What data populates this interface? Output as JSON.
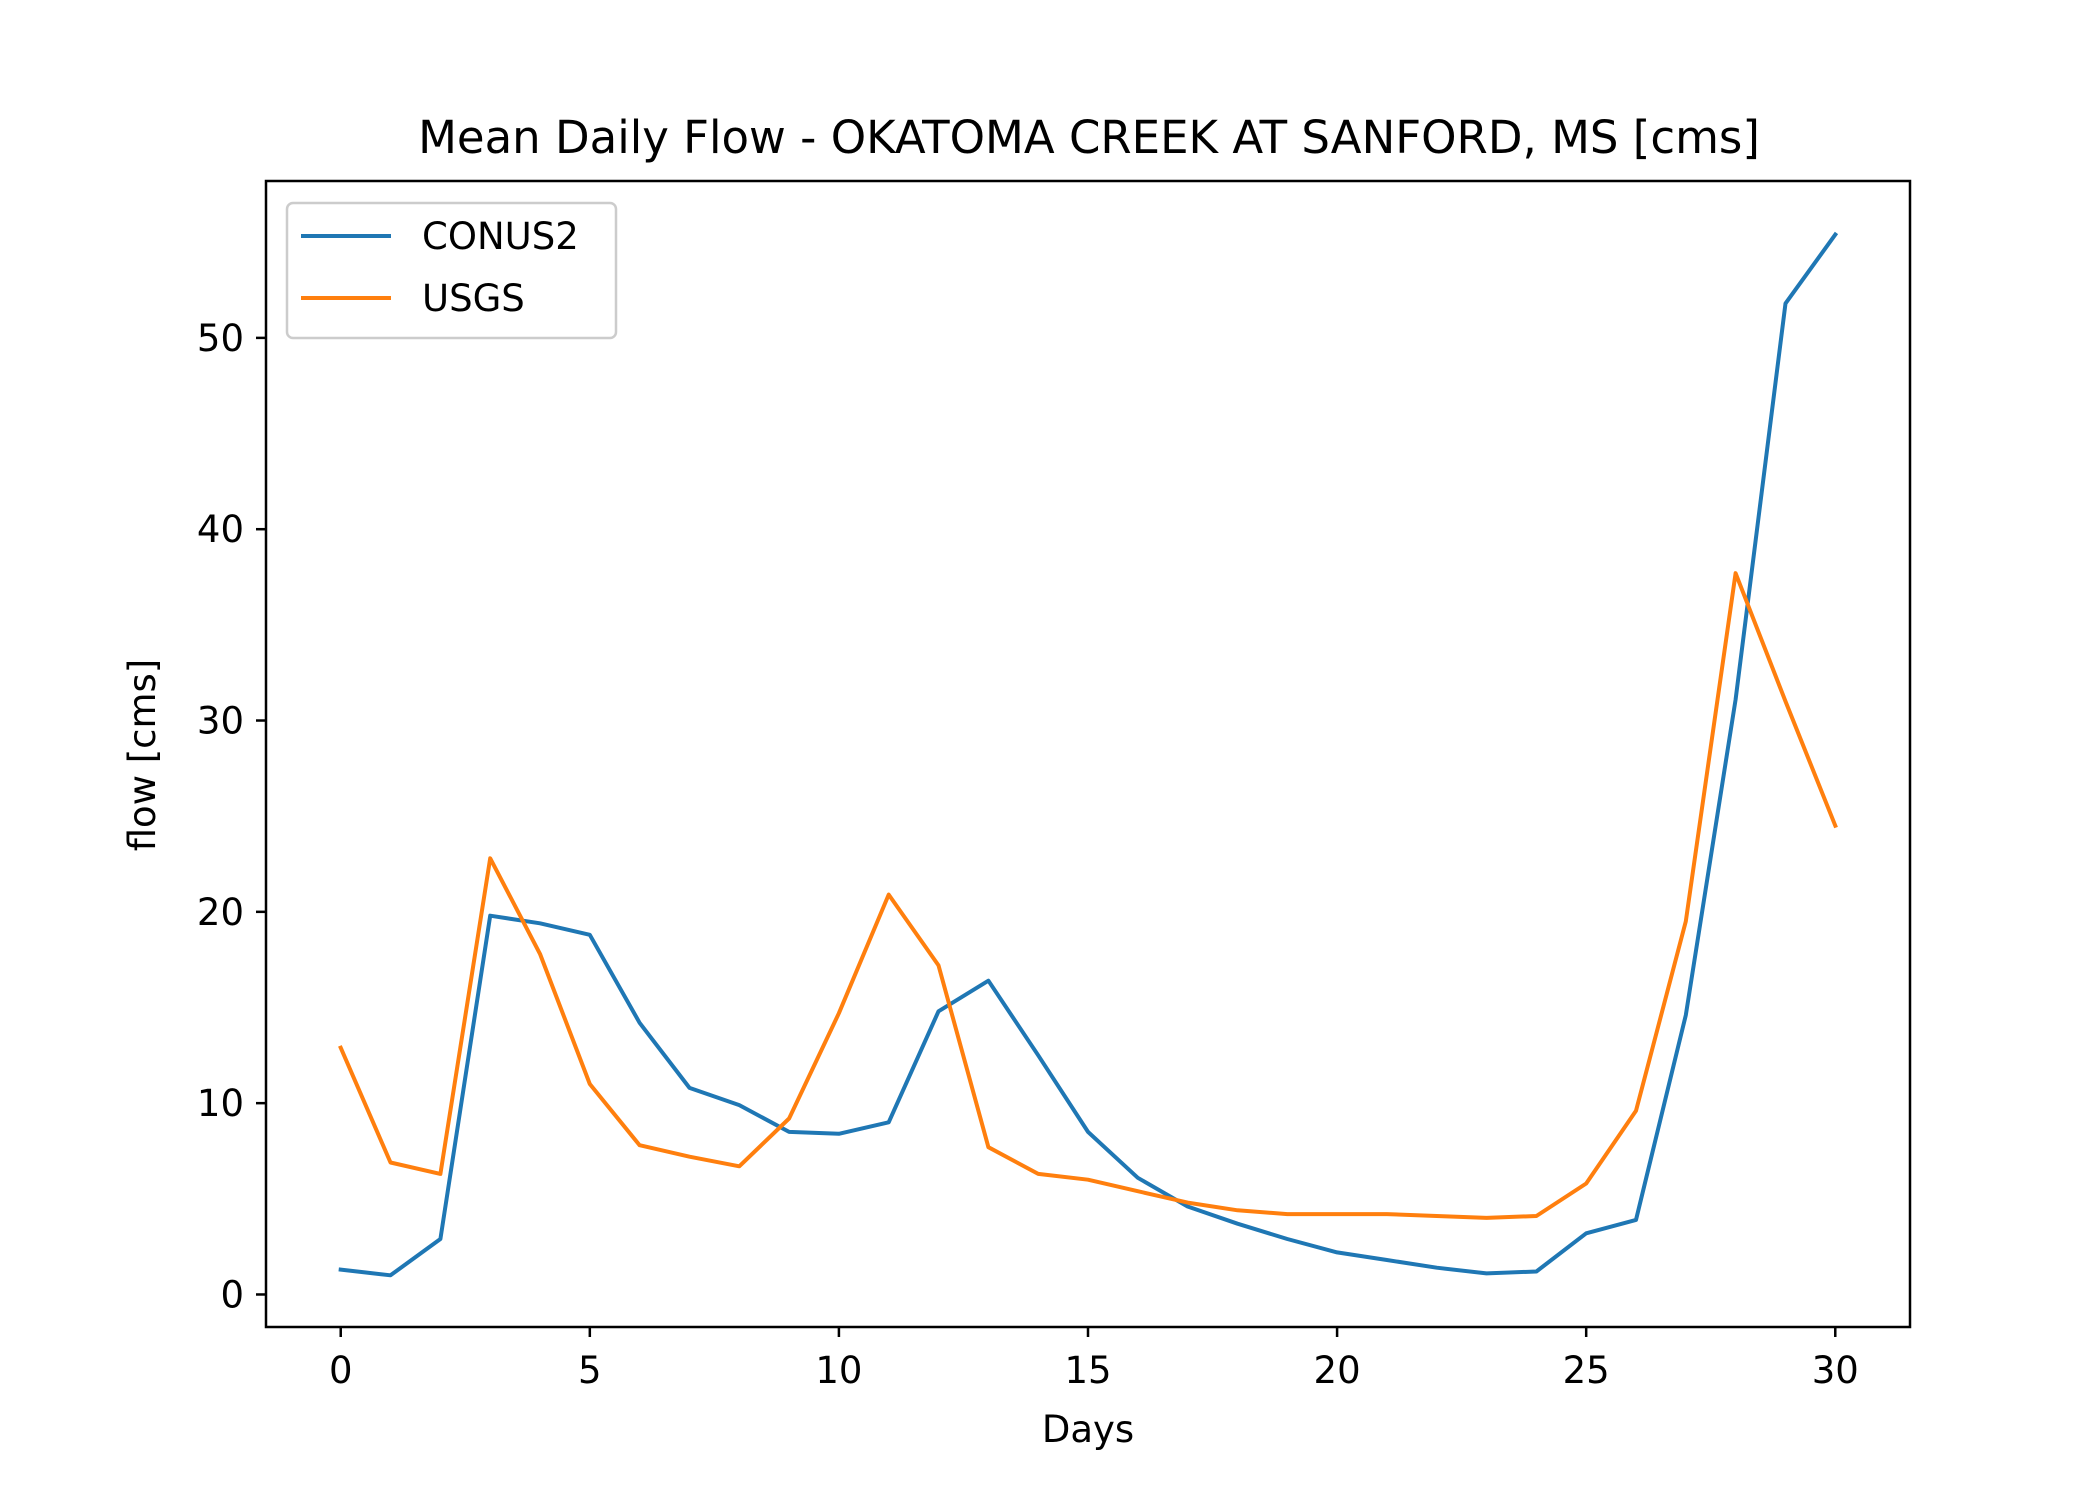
{
  "chart_data": {
    "type": "line",
    "title": "Mean Daily Flow - OKATOMA CREEK AT SANFORD, MS [cms]",
    "xlabel": "Days",
    "ylabel": "flow [cms]",
    "xlim": [
      -1.5,
      31.5
    ],
    "ylim": [
      -1.7,
      58.2
    ],
    "xticks": [
      0,
      5,
      10,
      15,
      20,
      25,
      30
    ],
    "yticks": [
      0,
      10,
      20,
      30,
      40,
      50
    ],
    "grid": false,
    "legend_position": "upper-left",
    "x": [
      0,
      1,
      2,
      3,
      4,
      5,
      6,
      7,
      8,
      9,
      10,
      11,
      12,
      13,
      14,
      15,
      16,
      17,
      18,
      19,
      20,
      21,
      22,
      23,
      24,
      25,
      26,
      27,
      28,
      29,
      30
    ],
    "series": [
      {
        "name": "CONUS2",
        "color": "#1f77b4",
        "values": [
          1.3,
          1.0,
          2.9,
          19.8,
          19.4,
          18.8,
          14.2,
          10.8,
          9.9,
          8.5,
          8.4,
          9.0,
          14.8,
          16.4,
          12.5,
          8.5,
          6.1,
          4.6,
          3.7,
          2.9,
          2.2,
          1.8,
          1.4,
          1.1,
          1.2,
          3.2,
          3.9,
          14.6,
          31.1,
          51.8,
          55.4
        ]
      },
      {
        "name": "USGS",
        "color": "#ff7f0e",
        "values": [
          12.9,
          6.9,
          6.3,
          22.8,
          17.8,
          11.0,
          7.8,
          7.2,
          6.7,
          9.2,
          14.7,
          20.9,
          17.2,
          7.7,
          6.3,
          6.0,
          5.4,
          4.8,
          4.4,
          4.2,
          4.2,
          4.2,
          4.1,
          4.0,
          4.1,
          5.8,
          9.6,
          19.5,
          37.7,
          31.0,
          24.5
        ]
      }
    ]
  }
}
